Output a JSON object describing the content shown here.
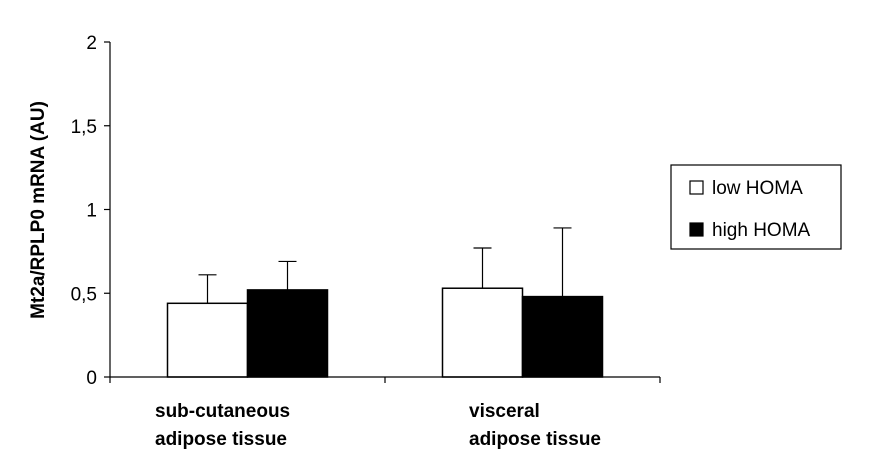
{
  "chart_data": {
    "type": "bar",
    "ylabel": "Mt2a/RPLP0 mRNA (AU)",
    "ylim": [
      0,
      2
    ],
    "yticks": [
      {
        "value": 0,
        "label": "0"
      },
      {
        "value": 0.5,
        "label": "0,5"
      },
      {
        "value": 1,
        "label": "1"
      },
      {
        "value": 1.5,
        "label": "1,5"
      },
      {
        "value": 2,
        "label": "2"
      }
    ],
    "categories": [
      [
        "sub-cutaneous",
        "adipose tissue"
      ],
      [
        "visceral",
        "adipose tissue"
      ]
    ],
    "series": [
      {
        "name": "low HOMA",
        "color": "#ffffff",
        "values": [
          0.44,
          0.53
        ],
        "errors": [
          0.17,
          0.24
        ]
      },
      {
        "name": "high HOMA",
        "color": "#000000",
        "values": [
          0.52,
          0.48
        ],
        "errors": [
          0.17,
          0.41
        ]
      }
    ],
    "grid": false,
    "legend_position": "right"
  }
}
